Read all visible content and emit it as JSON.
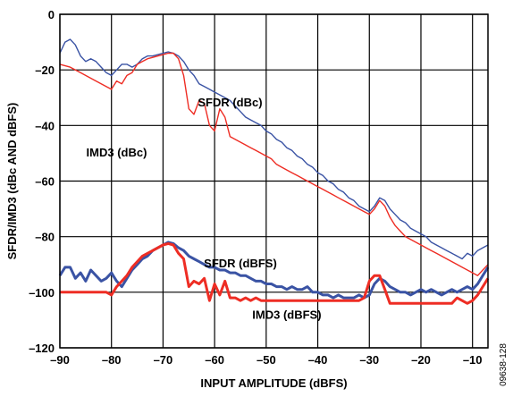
{
  "chart_data": {
    "type": "line",
    "xlabel": "INPUT AMPLITUDE (dBFS)",
    "ylabel": "SFDR/IMD3 (dBc AND dBFS)",
    "xlim": [
      -90,
      -7
    ],
    "ylim": [
      -120,
      0
    ],
    "grid": true,
    "x_ticks": [
      -90,
      -80,
      -70,
      -60,
      -50,
      -40,
      -30,
      -20,
      -10
    ],
    "x_tick_labels": [
      "–90",
      "–80",
      "–70",
      "–60",
      "–50",
      "–40",
      "–30",
      "–20",
      "–10"
    ],
    "y_ticks": [
      0,
      -20,
      -40,
      -60,
      -80,
      -100,
      -120
    ],
    "y_tick_labels": [
      "0",
      "–20",
      "–40",
      "–60",
      "–80",
      "–100",
      "–120"
    ],
    "figure_id": "09638-128",
    "series": [
      {
        "name": "SFDR (dBc)",
        "color": "#3a53a4",
        "width": "thin",
        "label_at": [
          -57,
          -31.5
        ],
        "points": [
          [
            -90,
            -14
          ],
          [
            -89,
            -10
          ],
          [
            -88,
            -9
          ],
          [
            -87,
            -11
          ],
          [
            -86,
            -15
          ],
          [
            -85,
            -17
          ],
          [
            -84,
            -16
          ],
          [
            -83,
            -17
          ],
          [
            -82,
            -19
          ],
          [
            -81,
            -21
          ],
          [
            -80,
            -22
          ],
          [
            -79,
            -20
          ],
          [
            -78,
            -18
          ],
          [
            -77,
            -18
          ],
          [
            -76,
            -19
          ],
          [
            -75,
            -18
          ],
          [
            -74,
            -16
          ],
          [
            -73,
            -15
          ],
          [
            -72,
            -15
          ],
          [
            -71,
            -14.5
          ],
          [
            -70,
            -14
          ],
          [
            -69,
            -13.5
          ],
          [
            -68,
            -14
          ],
          [
            -67,
            -15
          ],
          [
            -66,
            -17
          ],
          [
            -65,
            -20
          ],
          [
            -64,
            -22
          ],
          [
            -63,
            -25
          ],
          [
            -62,
            -26
          ],
          [
            -61,
            -27
          ],
          [
            -60,
            -28
          ],
          [
            -59,
            -29
          ],
          [
            -58,
            -30
          ],
          [
            -57,
            -31
          ],
          [
            -56,
            -33
          ],
          [
            -55,
            -35
          ],
          [
            -54,
            -37
          ],
          [
            -53,
            -38
          ],
          [
            -52,
            -39
          ],
          [
            -51,
            -40
          ],
          [
            -50,
            -42
          ],
          [
            -49,
            -43
          ],
          [
            -48,
            -45
          ],
          [
            -47,
            -46
          ],
          [
            -46,
            -48
          ],
          [
            -45,
            -49
          ],
          [
            -44,
            -51
          ],
          [
            -43,
            -52
          ],
          [
            -42,
            -54
          ],
          [
            -41,
            -55
          ],
          [
            -40,
            -57
          ],
          [
            -39,
            -58
          ],
          [
            -38,
            -60
          ],
          [
            -37,
            -61
          ],
          [
            -36,
            -63
          ],
          [
            -35,
            -64
          ],
          [
            -34,
            -66
          ],
          [
            -33,
            -67
          ],
          [
            -32,
            -69
          ],
          [
            -31,
            -70
          ],
          [
            -30,
            -71
          ],
          [
            -29,
            -69
          ],
          [
            -28,
            -66
          ],
          [
            -27,
            -67
          ],
          [
            -26,
            -70
          ],
          [
            -25,
            -72
          ],
          [
            -24,
            -74
          ],
          [
            -23,
            -75
          ],
          [
            -22,
            -77
          ],
          [
            -21,
            -78
          ],
          [
            -20,
            -79
          ],
          [
            -19,
            -80
          ],
          [
            -18,
            -82
          ],
          [
            -17,
            -83
          ],
          [
            -16,
            -84
          ],
          [
            -15,
            -85
          ],
          [
            -14,
            -86
          ],
          [
            -13,
            -87
          ],
          [
            -12,
            -88
          ],
          [
            -11,
            -86
          ],
          [
            -10,
            -87
          ],
          [
            -9,
            -85
          ],
          [
            -8,
            -84
          ],
          [
            -7,
            -83
          ]
        ]
      },
      {
        "name": "IMD3 (dBc)",
        "color": "#ee2d24",
        "width": "thin",
        "label_at": [
          -79,
          -49.5
        ],
        "points": [
          [
            -90,
            -18
          ],
          [
            -88,
            -19
          ],
          [
            -86,
            -21
          ],
          [
            -84,
            -23
          ],
          [
            -82,
            -25
          ],
          [
            -80,
            -27
          ],
          [
            -79,
            -24
          ],
          [
            -78,
            -25
          ],
          [
            -77,
            -22
          ],
          [
            -76,
            -21
          ],
          [
            -75,
            -18
          ],
          [
            -74,
            -17
          ],
          [
            -73,
            -16
          ],
          [
            -72,
            -15.5
          ],
          [
            -71,
            -15
          ],
          [
            -70,
            -14.5
          ],
          [
            -69,
            -14
          ],
          [
            -68,
            -14
          ],
          [
            -67,
            -16
          ],
          [
            -66,
            -22
          ],
          [
            -65,
            -34
          ],
          [
            -64,
            -36
          ],
          [
            -63,
            -31
          ],
          [
            -62,
            -32
          ],
          [
            -61,
            -40
          ],
          [
            -60,
            -42
          ],
          [
            -59,
            -34
          ],
          [
            -58,
            -37
          ],
          [
            -57,
            -44
          ],
          [
            -56,
            -45
          ],
          [
            -55,
            -46
          ],
          [
            -54,
            -47
          ],
          [
            -53,
            -48
          ],
          [
            -52,
            -49
          ],
          [
            -51,
            -50
          ],
          [
            -50,
            -51
          ],
          [
            -49,
            -52
          ],
          [
            -48,
            -54
          ],
          [
            -47,
            -55
          ],
          [
            -46,
            -56
          ],
          [
            -45,
            -57
          ],
          [
            -44,
            -58
          ],
          [
            -43,
            -59
          ],
          [
            -42,
            -60
          ],
          [
            -41,
            -61
          ],
          [
            -40,
            -62
          ],
          [
            -39,
            -63
          ],
          [
            -38,
            -64
          ],
          [
            -37,
            -65
          ],
          [
            -36,
            -66
          ],
          [
            -35,
            -67
          ],
          [
            -34,
            -68
          ],
          [
            -33,
            -69
          ],
          [
            -32,
            -70
          ],
          [
            -31,
            -71
          ],
          [
            -30,
            -72
          ],
          [
            -29,
            -70
          ],
          [
            -28,
            -67
          ],
          [
            -27,
            -69
          ],
          [
            -26,
            -73
          ],
          [
            -25,
            -76
          ],
          [
            -24,
            -78
          ],
          [
            -23,
            -80
          ],
          [
            -22,
            -81
          ],
          [
            -21,
            -82
          ],
          [
            -20,
            -83
          ],
          [
            -19,
            -84
          ],
          [
            -18,
            -85
          ],
          [
            -17,
            -86
          ],
          [
            -16,
            -87
          ],
          [
            -15,
            -88
          ],
          [
            -14,
            -89
          ],
          [
            -13,
            -90
          ],
          [
            -12,
            -91
          ],
          [
            -11,
            -92
          ],
          [
            -10,
            -93
          ],
          [
            -9,
            -94
          ],
          [
            -8,
            -92
          ],
          [
            -7,
            -90
          ]
        ]
      },
      {
        "name": "SFDR (dBFS)",
        "color": "#3a53a4",
        "width": "thick",
        "label_at": [
          -55,
          -89.5
        ],
        "points": [
          [
            -90,
            -94
          ],
          [
            -89,
            -91
          ],
          [
            -88,
            -91
          ],
          [
            -87,
            -95
          ],
          [
            -86,
            -93
          ],
          [
            -85,
            -96
          ],
          [
            -84,
            -92
          ],
          [
            -83,
            -94
          ],
          [
            -82,
            -96
          ],
          [
            -81,
            -95
          ],
          [
            -80,
            -93
          ],
          [
            -79,
            -96
          ],
          [
            -78,
            -98
          ],
          [
            -77,
            -95
          ],
          [
            -76,
            -92
          ],
          [
            -75,
            -90
          ],
          [
            -74,
            -88
          ],
          [
            -73,
            -87
          ],
          [
            -72,
            -85
          ],
          [
            -71,
            -84
          ],
          [
            -70,
            -83
          ],
          [
            -69,
            -82
          ],
          [
            -68,
            -82.5
          ],
          [
            -67,
            -84
          ],
          [
            -66,
            -85
          ],
          [
            -65,
            -87
          ],
          [
            -64,
            -88
          ],
          [
            -63,
            -89
          ],
          [
            -62,
            -90
          ],
          [
            -61,
            -91
          ],
          [
            -60,
            -91
          ],
          [
            -59,
            -92
          ],
          [
            -58,
            -92
          ],
          [
            -57,
            -93
          ],
          [
            -56,
            -93
          ],
          [
            -55,
            -94
          ],
          [
            -54,
            -94
          ],
          [
            -53,
            -95
          ],
          [
            -52,
            -96
          ],
          [
            -51,
            -96
          ],
          [
            -50,
            -97
          ],
          [
            -49,
            -97
          ],
          [
            -48,
            -98
          ],
          [
            -47,
            -98
          ],
          [
            -46,
            -99
          ],
          [
            -45,
            -98
          ],
          [
            -44,
            -99
          ],
          [
            -43,
            -99
          ],
          [
            -42,
            -98
          ],
          [
            -41,
            -100
          ],
          [
            -40,
            -100
          ],
          [
            -39,
            -101
          ],
          [
            -38,
            -101
          ],
          [
            -37,
            -102
          ],
          [
            -36,
            -101
          ],
          [
            -35,
            -102
          ],
          [
            -34,
            -102
          ],
          [
            -33,
            -102
          ],
          [
            -32,
            -101
          ],
          [
            -31,
            -102
          ],
          [
            -30,
            -101
          ],
          [
            -29,
            -97
          ],
          [
            -28,
            -95
          ],
          [
            -27,
            -96
          ],
          [
            -26,
            -98
          ],
          [
            -25,
            -99
          ],
          [
            -24,
            -100
          ],
          [
            -23,
            -100
          ],
          [
            -22,
            -101
          ],
          [
            -21,
            -100
          ],
          [
            -20,
            -99
          ],
          [
            -19,
            -100
          ],
          [
            -18,
            -99
          ],
          [
            -17,
            -100
          ],
          [
            -16,
            -101
          ],
          [
            -15,
            -100
          ],
          [
            -14,
            -99
          ],
          [
            -13,
            -100
          ],
          [
            -12,
            -99
          ],
          [
            -11,
            -98
          ],
          [
            -10,
            -99
          ],
          [
            -9,
            -97
          ],
          [
            -8,
            -94
          ],
          [
            -7,
            -91
          ]
        ]
      },
      {
        "name": "IMD3 (dBFS)",
        "color": "#ee2d24",
        "width": "thick",
        "label_at": [
          -46,
          -108
        ],
        "points": [
          [
            -90,
            -100
          ],
          [
            -88,
            -100
          ],
          [
            -86,
            -100
          ],
          [
            -84,
            -100
          ],
          [
            -82,
            -100
          ],
          [
            -81,
            -100
          ],
          [
            -80,
            -101
          ],
          [
            -79,
            -98
          ],
          [
            -78,
            -96
          ],
          [
            -77,
            -94
          ],
          [
            -76,
            -91
          ],
          [
            -75,
            -89
          ],
          [
            -74,
            -87
          ],
          [
            -73,
            -86
          ],
          [
            -72,
            -85
          ],
          [
            -71,
            -84
          ],
          [
            -70,
            -83
          ],
          [
            -69,
            -82.5
          ],
          [
            -68,
            -83
          ],
          [
            -67,
            -86
          ],
          [
            -66,
            -88
          ],
          [
            -65,
            -98
          ],
          [
            -64,
            -96
          ],
          [
            -63,
            -97
          ],
          [
            -62,
            -95
          ],
          [
            -61,
            -103
          ],
          [
            -60,
            -97
          ],
          [
            -59,
            -101
          ],
          [
            -58,
            -96
          ],
          [
            -57,
            -102
          ],
          [
            -56,
            -102
          ],
          [
            -55,
            -103
          ],
          [
            -54,
            -102
          ],
          [
            -53,
            -103
          ],
          [
            -52,
            -102
          ],
          [
            -51,
            -103
          ],
          [
            -50,
            -103
          ],
          [
            -48,
            -103
          ],
          [
            -46,
            -103
          ],
          [
            -44,
            -103
          ],
          [
            -42,
            -103
          ],
          [
            -40,
            -103
          ],
          [
            -38,
            -103
          ],
          [
            -36,
            -103
          ],
          [
            -34,
            -103
          ],
          [
            -32,
            -103
          ],
          [
            -31,
            -102
          ],
          [
            -30,
            -96
          ],
          [
            -29,
            -94
          ],
          [
            -28,
            -94
          ],
          [
            -27,
            -99
          ],
          [
            -26,
            -104
          ],
          [
            -24,
            -104
          ],
          [
            -22,
            -104
          ],
          [
            -20,
            -104
          ],
          [
            -18,
            -104
          ],
          [
            -16,
            -104
          ],
          [
            -14,
            -104
          ],
          [
            -13,
            -102
          ],
          [
            -12,
            -103
          ],
          [
            -11,
            -104
          ],
          [
            -10,
            -103
          ],
          [
            -9,
            -101
          ],
          [
            -8,
            -98
          ],
          [
            -7,
            -95
          ]
        ]
      }
    ]
  }
}
